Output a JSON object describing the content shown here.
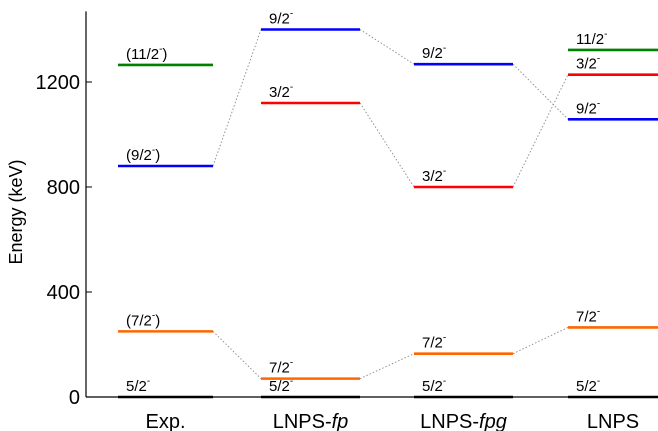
{
  "chart_data": {
    "type": "level_scheme",
    "title": "",
    "ylabel": "Energy (keV)",
    "xlabel": "",
    "ylim": [
      0,
      1450
    ],
    "yticks": [
      0,
      400,
      800,
      1200
    ],
    "grid": false,
    "legend": "none",
    "categories": [
      {
        "label": "Exp.",
        "italic": ""
      },
      {
        "label": "LNPS-",
        "italic": "fp"
      },
      {
        "label": "LNPS-",
        "italic": "fpg"
      },
      {
        "label": "LNPS",
        "italic": ""
      }
    ],
    "colors": {
      "5/2": "#000000",
      "7/2": "#ff6600",
      "3/2": "#ff0000",
      "9/2": "#0000ff",
      "11/2": "#008000",
      "connector": "#888888"
    },
    "levels": [
      [
        {
          "spin": "5/2",
          "energy": 0,
          "text": "5/2",
          "sup": "-"
        },
        {
          "spin": "7/2",
          "energy": 250,
          "text": "(7/2",
          "sup": "-",
          "post": ")"
        },
        {
          "spin": "9/2",
          "energy": 880,
          "text": "(9/2",
          "sup": "-",
          "post": ")"
        },
        {
          "spin": "11/2",
          "energy": 1265,
          "text": "(11/2",
          "sup": "-",
          "post": ")"
        }
      ],
      [
        {
          "spin": "5/2",
          "energy": 0,
          "text": "5/2",
          "sup": "-"
        },
        {
          "spin": "7/2",
          "energy": 70,
          "text": "7/2",
          "sup": "-"
        },
        {
          "spin": "3/2",
          "energy": 1120,
          "text": "3/2",
          "sup": "-"
        },
        {
          "spin": "9/2",
          "energy": 1400,
          "text": "9/2",
          "sup": "-"
        }
      ],
      [
        {
          "spin": "5/2",
          "energy": 0,
          "text": "5/2",
          "sup": "-"
        },
        {
          "spin": "7/2",
          "energy": 165,
          "text": "7/2",
          "sup": "-"
        },
        {
          "spin": "3/2",
          "energy": 800,
          "text": "3/2",
          "sup": "-"
        },
        {
          "spin": "9/2",
          "energy": 1268,
          "text": "9/2",
          "sup": "-"
        }
      ],
      [
        {
          "spin": "5/2",
          "energy": 0,
          "text": "5/2",
          "sup": "-"
        },
        {
          "spin": "7/2",
          "energy": 265,
          "text": "7/2",
          "sup": "-"
        },
        {
          "spin": "9/2",
          "energy": 1058,
          "text": "9/2",
          "sup": "-"
        },
        {
          "spin": "3/2",
          "energy": 1228,
          "text": "3/2",
          "sup": "-"
        },
        {
          "spin": "11/2",
          "energy": 1322,
          "text": "11/2",
          "sup": "-"
        }
      ]
    ]
  }
}
